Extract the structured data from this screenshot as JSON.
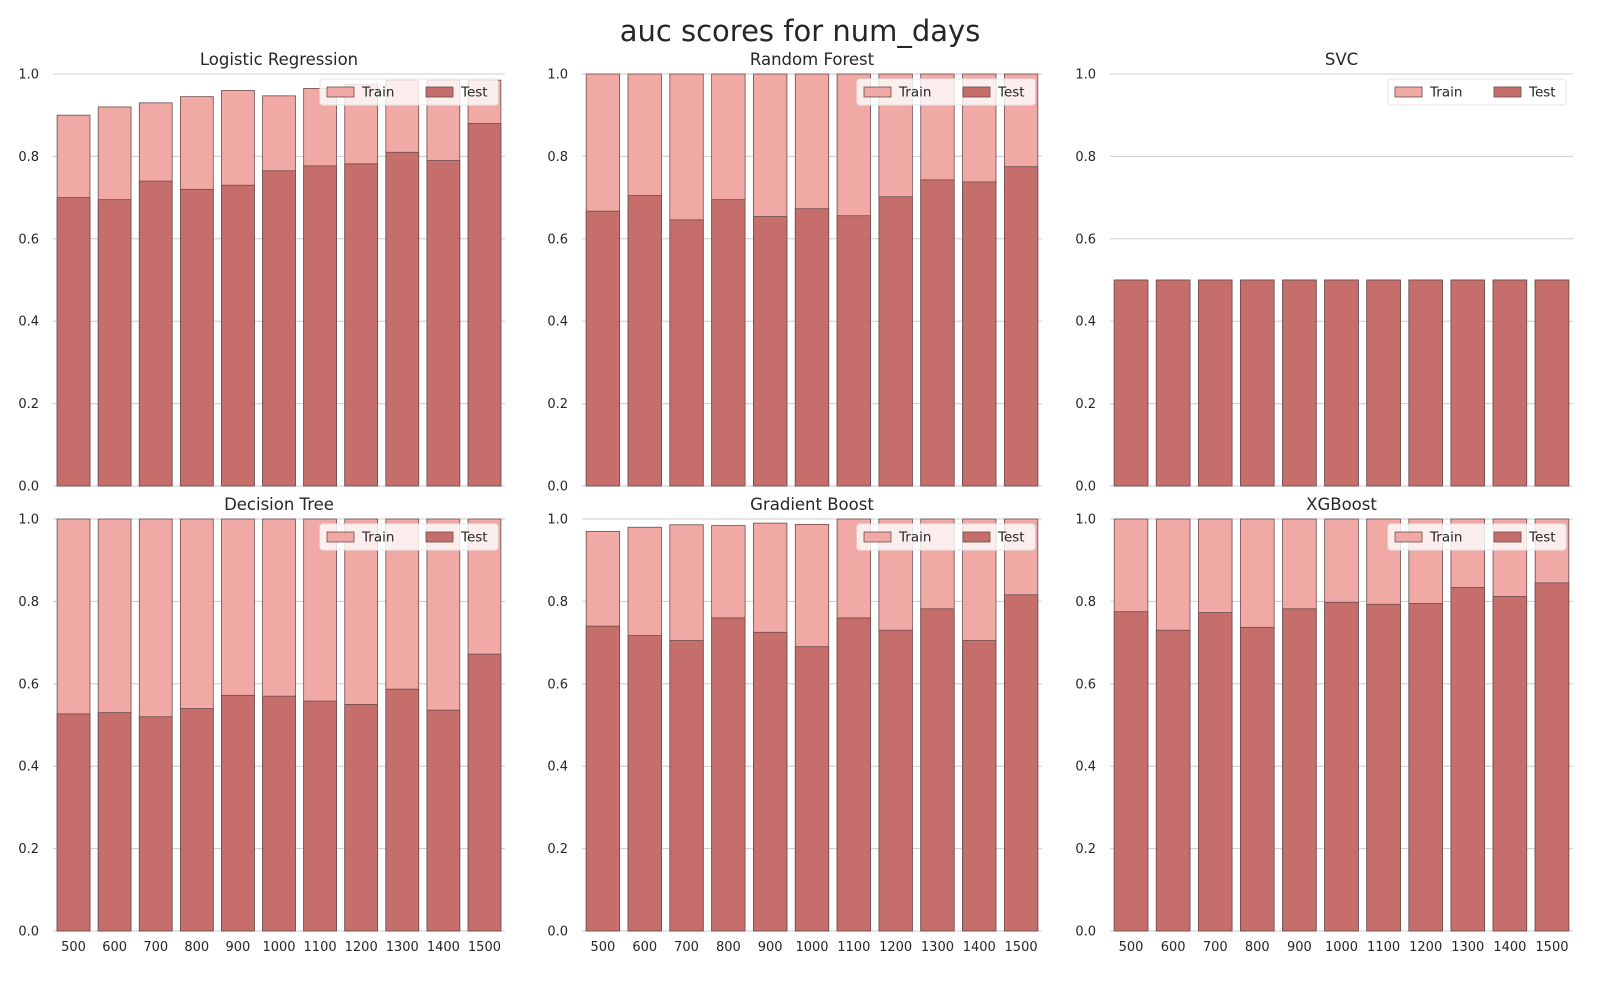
{
  "figure": {
    "title": "auc scores for num_days"
  },
  "chart_data": [
    {
      "type": "bar",
      "title": "Logistic Regression",
      "categories": [
        "500",
        "600",
        "700",
        "800",
        "900",
        "1000",
        "1100",
        "1200",
        "1300",
        "1400",
        "1500"
      ],
      "series": [
        {
          "name": "Train",
          "values": [
            0.9,
            0.92,
            0.93,
            0.945,
            0.96,
            0.947,
            0.965,
            0.975,
            0.985,
            0.985,
            0.985
          ]
        },
        {
          "name": "Test",
          "values": [
            0.7,
            0.695,
            0.74,
            0.72,
            0.73,
            0.765,
            0.777,
            0.782,
            0.81,
            0.79,
            0.88
          ]
        }
      ],
      "ylim": [
        0,
        1
      ],
      "yticks": [
        "0.0",
        "0.2",
        "0.4",
        "0.6",
        "0.8",
        "1.0"
      ],
      "show_xticks": false,
      "legend": "top-right",
      "grid": "y"
    },
    {
      "type": "bar",
      "title": "Random Forest",
      "categories": [
        "500",
        "600",
        "700",
        "800",
        "900",
        "1000",
        "1100",
        "1200",
        "1300",
        "1400",
        "1500"
      ],
      "series": [
        {
          "name": "Train",
          "values": [
            1.0,
            1.0,
            1.0,
            1.0,
            1.0,
            1.0,
            1.0,
            1.0,
            1.0,
            1.0,
            1.0
          ]
        },
        {
          "name": "Test",
          "values": [
            0.667,
            0.705,
            0.646,
            0.695,
            0.654,
            0.673,
            0.656,
            0.702,
            0.743,
            0.738,
            0.775
          ]
        }
      ],
      "ylim": [
        0,
        1
      ],
      "yticks": [
        "0.0",
        "0.2",
        "0.4",
        "0.6",
        "0.8",
        "1.0"
      ],
      "show_xticks": false,
      "legend": "top-right",
      "grid": "y"
    },
    {
      "type": "bar",
      "title": "SVC",
      "categories": [
        "500",
        "600",
        "700",
        "800",
        "900",
        "1000",
        "1100",
        "1200",
        "1300",
        "1400",
        "1500"
      ],
      "series": [
        {
          "name": "Train",
          "values": [
            0.5,
            0.5,
            0.5,
            0.5,
            0.5,
            0.5,
            0.5,
            0.5,
            0.5,
            0.5,
            0.5
          ]
        },
        {
          "name": "Test",
          "values": [
            0.5,
            0.5,
            0.5,
            0.5,
            0.5,
            0.5,
            0.5,
            0.5,
            0.5,
            0.5,
            0.5
          ]
        }
      ],
      "ylim": [
        0,
        1
      ],
      "yticks": [
        "0.0",
        "0.2",
        "0.4",
        "0.6",
        "0.8",
        "1.0"
      ],
      "show_xticks": false,
      "legend": "top-right",
      "grid": "y"
    },
    {
      "type": "bar",
      "title": "Decision Tree",
      "categories": [
        "500",
        "600",
        "700",
        "800",
        "900",
        "1000",
        "1100",
        "1200",
        "1300",
        "1400",
        "1500"
      ],
      "series": [
        {
          "name": "Train",
          "values": [
            1.0,
            1.0,
            1.0,
            1.0,
            1.0,
            1.0,
            1.0,
            1.0,
            1.0,
            1.0,
            1.0
          ]
        },
        {
          "name": "Test",
          "values": [
            0.527,
            0.53,
            0.52,
            0.54,
            0.572,
            0.57,
            0.558,
            0.55,
            0.587,
            0.536,
            0.672
          ]
        }
      ],
      "ylim": [
        0,
        1
      ],
      "yticks": [
        "0.0",
        "0.2",
        "0.4",
        "0.6",
        "0.8",
        "1.0"
      ],
      "show_xticks": true,
      "legend": "top-right",
      "grid": "y"
    },
    {
      "type": "bar",
      "title": "Gradient Boost",
      "categories": [
        "500",
        "600",
        "700",
        "800",
        "900",
        "1000",
        "1100",
        "1200",
        "1300",
        "1400",
        "1500"
      ],
      "series": [
        {
          "name": "Train",
          "values": [
            0.97,
            0.98,
            0.986,
            0.984,
            0.99,
            0.987,
            1.0,
            1.0,
            1.0,
            1.0,
            1.0
          ]
        },
        {
          "name": "Test",
          "values": [
            0.74,
            0.717,
            0.705,
            0.76,
            0.725,
            0.69,
            0.76,
            0.73,
            0.782,
            0.705,
            0.816
          ]
        }
      ],
      "ylim": [
        0,
        1
      ],
      "yticks": [
        "0.0",
        "0.2",
        "0.4",
        "0.6",
        "0.8",
        "1.0"
      ],
      "show_xticks": true,
      "legend": "top-right",
      "grid": "y"
    },
    {
      "type": "bar",
      "title": "XGBoost",
      "categories": [
        "500",
        "600",
        "700",
        "800",
        "900",
        "1000",
        "1100",
        "1200",
        "1300",
        "1400",
        "1500"
      ],
      "series": [
        {
          "name": "Train",
          "values": [
            1.0,
            1.0,
            1.0,
            1.0,
            1.0,
            1.0,
            1.0,
            1.0,
            1.0,
            1.0,
            1.0
          ]
        },
        {
          "name": "Test",
          "values": [
            0.775,
            0.73,
            0.773,
            0.737,
            0.782,
            0.798,
            0.793,
            0.795,
            0.834,
            0.812,
            0.845
          ]
        }
      ],
      "ylim": [
        0,
        1
      ],
      "yticks": [
        "0.0",
        "0.2",
        "0.4",
        "0.6",
        "0.8",
        "1.0"
      ],
      "show_xticks": true,
      "legend": "top-right",
      "grid": "y"
    }
  ],
  "colors": {
    "train": "#f1a9a5",
    "test": "#c66e6c",
    "bar_edge": "#6a4c4b",
    "grid": "#cccccc",
    "text": "#262626"
  }
}
